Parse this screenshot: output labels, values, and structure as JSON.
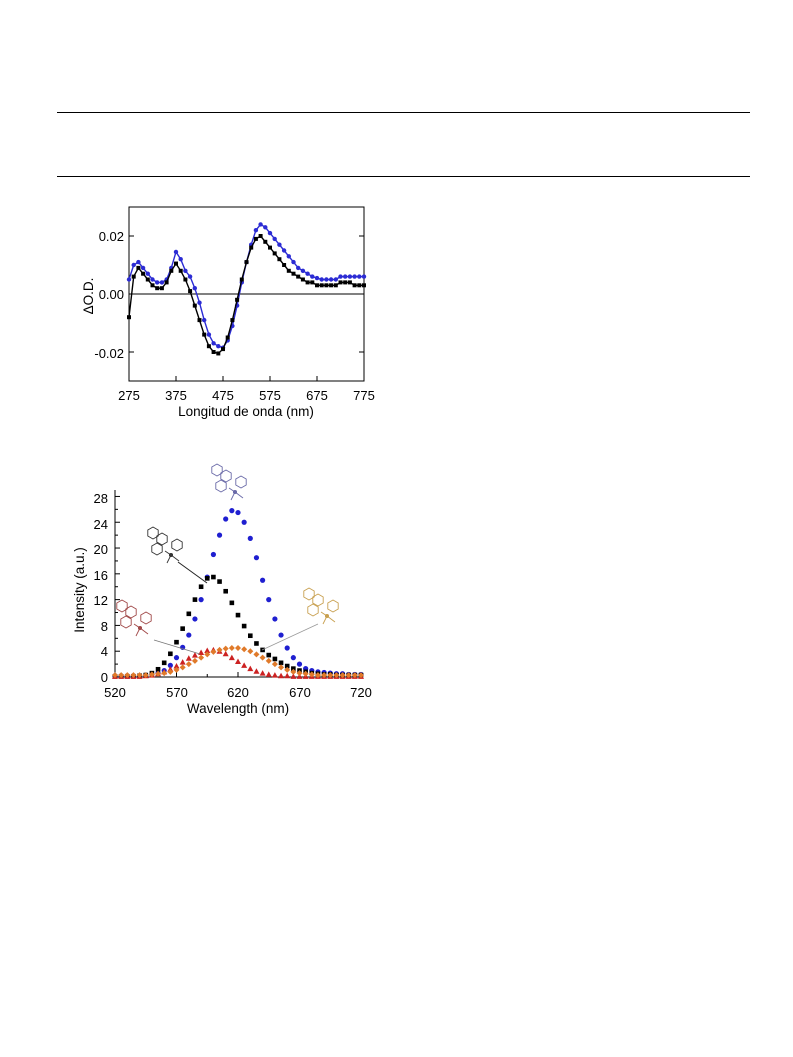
{
  "chart_data": [
    {
      "type": "scatter",
      "xlabel": "Longitud de onda (nm)",
      "ylabel": "ΔO.D.",
      "xlim": [
        275,
        775
      ],
      "ylim": [
        -0.03,
        0.03
      ],
      "xticks": [
        "275",
        "375",
        "475",
        "575",
        "675",
        "775"
      ],
      "yticks": [
        "0.02",
        "0.00",
        "-0.02"
      ],
      "reference_line_y": 0,
      "legend": "none",
      "series": [
        {
          "color": "#2b2bd4",
          "x": [
            275,
            285,
            295,
            305,
            315,
            325,
            335,
            345,
            355,
            365,
            375,
            385,
            395,
            405,
            415,
            425,
            435,
            445,
            455,
            465,
            475,
            485,
            495,
            505,
            515,
            525,
            535,
            545,
            555,
            565,
            575,
            585,
            595,
            605,
            615,
            625,
            635,
            645,
            655,
            665,
            675,
            685,
            695,
            705,
            715,
            725,
            735,
            745,
            755,
            765,
            775
          ],
          "y": [
            0.005,
            0.01,
            0.011,
            0.009,
            0.007,
            0.005,
            0.004,
            0.004,
            0.005,
            0.009,
            0.0145,
            0.012,
            0.008,
            0.006,
            0.002,
            -0.003,
            -0.009,
            -0.014,
            -0.017,
            -0.018,
            -0.0185,
            -0.016,
            -0.011,
            -0.004,
            0.004,
            0.011,
            0.017,
            0.022,
            0.024,
            0.023,
            0.021,
            0.019,
            0.017,
            0.015,
            0.013,
            0.011,
            0.009,
            0.008,
            0.007,
            0.006,
            0.0055,
            0.005,
            0.005,
            0.005,
            0.005,
            0.006,
            0.006,
            0.006,
            0.006,
            0.006,
            0.006
          ]
        },
        {
          "color": "#000000",
          "x": [
            275,
            285,
            295,
            305,
            315,
            325,
            335,
            345,
            355,
            365,
            375,
            385,
            395,
            405,
            415,
            425,
            435,
            445,
            455,
            465,
            475,
            485,
            495,
            505,
            515,
            525,
            535,
            545,
            555,
            565,
            575,
            585,
            595,
            605,
            615,
            625,
            635,
            645,
            655,
            665,
            675,
            685,
            695,
            705,
            715,
            725,
            735,
            745,
            755,
            765,
            775
          ],
          "y": [
            -0.008,
            0.006,
            0.009,
            0.007,
            0.005,
            0.003,
            0.002,
            0.002,
            0.004,
            0.008,
            0.0105,
            0.008,
            0.005,
            0.001,
            -0.004,
            -0.009,
            -0.014,
            -0.018,
            -0.02,
            -0.0205,
            -0.019,
            -0.015,
            -0.009,
            -0.002,
            0.005,
            0.011,
            0.016,
            0.019,
            0.02,
            0.018,
            0.016,
            0.014,
            0.012,
            0.01,
            0.008,
            0.007,
            0.006,
            0.005,
            0.004,
            0.004,
            0.003,
            0.003,
            0.003,
            0.003,
            0.003,
            0.004,
            0.004,
            0.004,
            0.003,
            0.003,
            0.003
          ]
        }
      ]
    },
    {
      "type": "scatter",
      "xlabel": "Wavelength (nm)",
      "ylabel": "Intensity (a.u.)",
      "xlim": [
        520,
        720
      ],
      "ylim": [
        0,
        29
      ],
      "xticks": [
        "520",
        "570",
        "620",
        "670",
        "720"
      ],
      "yticks": [
        "0",
        "4",
        "8",
        "12",
        "16",
        "20",
        "24",
        "28"
      ],
      "legend": "none",
      "series": [
        {
          "color": "#1f1fd0",
          "marker": "circle",
          "x": [
            520,
            525,
            530,
            535,
            540,
            545,
            550,
            555,
            560,
            565,
            570,
            575,
            580,
            585,
            590,
            595,
            600,
            605,
            610,
            615,
            620,
            625,
            630,
            635,
            640,
            645,
            650,
            655,
            660,
            665,
            670,
            675,
            680,
            685,
            690,
            695,
            700,
            705,
            710,
            715,
            720
          ],
          "y": [
            0.2,
            0.2,
            0.2,
            0.2,
            0.2,
            0.3,
            0.4,
            0.6,
            1.0,
            1.8,
            3.0,
            4.6,
            6.5,
            9.0,
            12.0,
            15.5,
            19.0,
            22.0,
            24.5,
            25.8,
            25.5,
            24.0,
            21.5,
            18.5,
            15.0,
            12.0,
            9.0,
            6.5,
            4.5,
            3.0,
            2.0,
            1.3,
            1.0,
            0.8,
            0.7,
            0.6,
            0.5,
            0.5,
            0.4,
            0.4,
            0.4
          ]
        },
        {
          "color": "#000000",
          "marker": "square",
          "x": [
            520,
            525,
            530,
            535,
            540,
            545,
            550,
            555,
            560,
            565,
            570,
            575,
            580,
            585,
            590,
            595,
            600,
            605,
            610,
            615,
            620,
            625,
            630,
            635,
            640,
            645,
            650,
            655,
            660,
            665,
            670,
            675,
            680,
            685,
            690,
            695,
            700,
            705,
            710,
            715,
            720
          ],
          "y": [
            0.1,
            0.1,
            0.1,
            0.1,
            0.2,
            0.3,
            0.6,
            1.2,
            2.2,
            3.6,
            5.4,
            7.5,
            9.8,
            12.0,
            14.0,
            15.3,
            15.5,
            14.8,
            13.3,
            11.5,
            9.6,
            7.9,
            6.4,
            5.2,
            4.2,
            3.4,
            2.8,
            2.2,
            1.7,
            1.3,
            1.0,
            0.8,
            0.6,
            0.5,
            0.4,
            0.4,
            0.3,
            0.3,
            0.3,
            0.3,
            0.3
          ]
        },
        {
          "color": "#cc2222",
          "marker": "triangle",
          "x": [
            520,
            525,
            530,
            535,
            540,
            545,
            550,
            555,
            560,
            565,
            570,
            575,
            580,
            585,
            590,
            595,
            600,
            605,
            610,
            615,
            620,
            625,
            630,
            635,
            640,
            645,
            650,
            655,
            660,
            665,
            670,
            675,
            680,
            685,
            690,
            695,
            700,
            705,
            710,
            715,
            720
          ],
          "y": [
            0.1,
            0.1,
            0.1,
            0.1,
            0.1,
            0.2,
            0.3,
            0.5,
            0.8,
            1.2,
            1.7,
            2.3,
            2.9,
            3.4,
            3.8,
            4.1,
            4.2,
            4.0,
            3.6,
            3.0,
            2.4,
            1.8,
            1.3,
            0.9,
            0.6,
            0.4,
            0.3,
            0.2,
            0.2,
            0.1,
            0.1,
            0.1,
            0.1,
            0.1,
            0.1,
            0.1,
            0.1,
            0.1,
            0.1,
            0.1,
            0.1
          ]
        },
        {
          "color": "#e07a2a",
          "marker": "diamond",
          "x": [
            520,
            525,
            530,
            535,
            540,
            545,
            550,
            555,
            560,
            565,
            570,
            575,
            580,
            585,
            590,
            595,
            600,
            605,
            610,
            615,
            620,
            625,
            630,
            635,
            640,
            645,
            650,
            655,
            660,
            665,
            670,
            675,
            680,
            685,
            690,
            695,
            700,
            705,
            710,
            715,
            720
          ],
          "y": [
            0.3,
            0.3,
            0.3,
            0.3,
            0.3,
            0.3,
            0.4,
            0.5,
            0.6,
            0.8,
            1.1,
            1.5,
            2.0,
            2.5,
            3.0,
            3.5,
            3.9,
            4.2,
            4.4,
            4.5,
            4.5,
            4.3,
            4.0,
            3.5,
            3.0,
            2.5,
            2.0,
            1.5,
            1.1,
            0.8,
            0.6,
            0.5,
            0.4,
            0.3,
            0.3,
            0.3,
            0.3,
            0.3,
            0.3,
            0.3,
            0.3
          ]
        }
      ],
      "annotations": [
        {
          "name": "structure-blue",
          "color": "#6a6aa8"
        },
        {
          "name": "structure-black",
          "color": "#333333"
        },
        {
          "name": "structure-red",
          "color": "#a04848"
        },
        {
          "name": "structure-orange",
          "color": "#c8a050"
        }
      ]
    }
  ]
}
